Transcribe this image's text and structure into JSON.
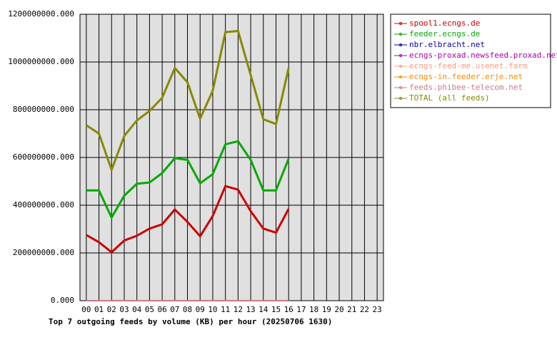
{
  "chart_data": {
    "type": "line",
    "title": "Top 7 outgoing feeds by volume (KB) per hour (20250706 1630)",
    "categories": [
      "00",
      "01",
      "02",
      "03",
      "04",
      "05",
      "06",
      "07",
      "08",
      "09",
      "10",
      "11",
      "12",
      "13",
      "14",
      "15",
      "16",
      "17",
      "18",
      "19",
      "20",
      "21",
      "22",
      "23"
    ],
    "ylim": [
      0,
      1200000000
    ],
    "yticks": [
      {
        "value": 0,
        "label": "0.000"
      },
      {
        "value": 200000000,
        "label": "200000000.000"
      },
      {
        "value": 400000000,
        "label": "400000000.000"
      },
      {
        "value": 600000000,
        "label": "600000000.000"
      },
      {
        "value": 800000000,
        "label": "800000000.000"
      },
      {
        "value": 1000000000,
        "label": "1000000000.000"
      },
      {
        "value": 1200000000,
        "label": "1200000000.000"
      }
    ],
    "grid": true,
    "legend": "right",
    "series": [
      {
        "name": "spool1.ecngs.de",
        "color": "#cc0000",
        "values": [
          275000000,
          245000000,
          203000000,
          252000000,
          272000000,
          302000000,
          320000000,
          382000000,
          330000000,
          270000000,
          355000000,
          480000000,
          465000000,
          375000000,
          302000000,
          285000000,
          385000000,
          null,
          null,
          null,
          null,
          null,
          null,
          null
        ]
      },
      {
        "name": "feeder.ecngs.de",
        "color": "#00aa00",
        "values": [
          462000000,
          462000000,
          348000000,
          440000000,
          490000000,
          495000000,
          535000000,
          597000000,
          590000000,
          492000000,
          530000000,
          655000000,
          668000000,
          590000000,
          462000000,
          462000000,
          595000000,
          null,
          null,
          null,
          null,
          null,
          null,
          null
        ]
      },
      {
        "name": "nbr.elbracht.net",
        "color": "#0000aa",
        "values": [
          0,
          0,
          0,
          0,
          0,
          0,
          0,
          0,
          0,
          0,
          0,
          0,
          0,
          0,
          0,
          0,
          0,
          null,
          null,
          null,
          null,
          null,
          null,
          null
        ]
      },
      {
        "name": "ecngs-proxad.newsfeed.proxad.net",
        "color": "#aa00aa",
        "values": [
          0,
          0,
          0,
          0,
          0,
          0,
          0,
          0,
          0,
          0,
          0,
          0,
          0,
          0,
          0,
          0,
          0,
          null,
          null,
          null,
          null,
          null,
          null,
          null
        ]
      },
      {
        "name": "ecngs-feed-me.usenet.farm",
        "color": "#ff9980",
        "values": [
          0,
          0,
          0,
          0,
          0,
          0,
          0,
          0,
          0,
          0,
          0,
          0,
          0,
          0,
          0,
          0,
          0,
          null,
          null,
          null,
          null,
          null,
          null,
          null
        ]
      },
      {
        "name": "ecngs-in.feeder.erje.net",
        "color": "#ff8800",
        "values": [
          0,
          0,
          0,
          0,
          0,
          0,
          0,
          0,
          0,
          0,
          0,
          0,
          0,
          0,
          0,
          0,
          0,
          null,
          null,
          null,
          null,
          null,
          null,
          null
        ]
      },
      {
        "name": "feeds.phibee-telecom.net",
        "color": "#cc7788",
        "values": [
          0,
          0,
          0,
          0,
          0,
          0,
          0,
          0,
          0,
          0,
          0,
          0,
          0,
          0,
          0,
          0,
          0,
          null,
          null,
          null,
          null,
          null,
          null,
          null
        ]
      },
      {
        "name": "TOTAL (all feeds)",
        "color": "#888800",
        "values": [
          735000000,
          700000000,
          548000000,
          690000000,
          755000000,
          795000000,
          850000000,
          975000000,
          915000000,
          762000000,
          880000000,
          1125000000,
          1130000000,
          945000000,
          760000000,
          740000000,
          975000000,
          null,
          null,
          null,
          null,
          null,
          null,
          null
        ]
      }
    ]
  }
}
